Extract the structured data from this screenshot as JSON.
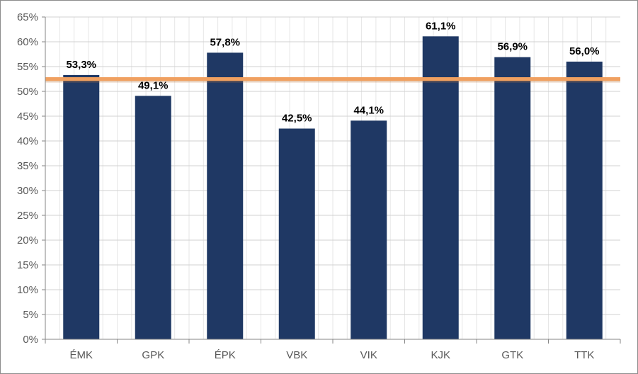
{
  "chart_data": {
    "type": "bar",
    "title": "",
    "xlabel": "",
    "ylabel": "",
    "categories": [
      "ÉMK",
      "GPK",
      "ÉPK",
      "VBK",
      "VIK",
      "KJK",
      "GTK",
      "TTK"
    ],
    "values": [
      53.3,
      49.1,
      57.8,
      42.5,
      44.1,
      61.1,
      56.9,
      56.0
    ],
    "data_labels": [
      "53,3%",
      "49,1%",
      "57,8%",
      "42,5%",
      "44,1%",
      "61,1%",
      "56,9%",
      "56,0%"
    ],
    "ylim": [
      0,
      65
    ],
    "y_ticks": [
      0,
      5,
      10,
      15,
      20,
      25,
      30,
      35,
      40,
      45,
      50,
      55,
      60,
      65
    ],
    "y_tick_labels": [
      "0%",
      "5%",
      "10%",
      "15%",
      "20%",
      "25%",
      "30%",
      "35%",
      "40%",
      "45%",
      "50%",
      "55%",
      "60%",
      "65%"
    ],
    "reference_line": {
      "value": 52.5,
      "color": "#f0a060"
    },
    "bar_color": "#1f3864",
    "grid": true,
    "legend": "none"
  }
}
